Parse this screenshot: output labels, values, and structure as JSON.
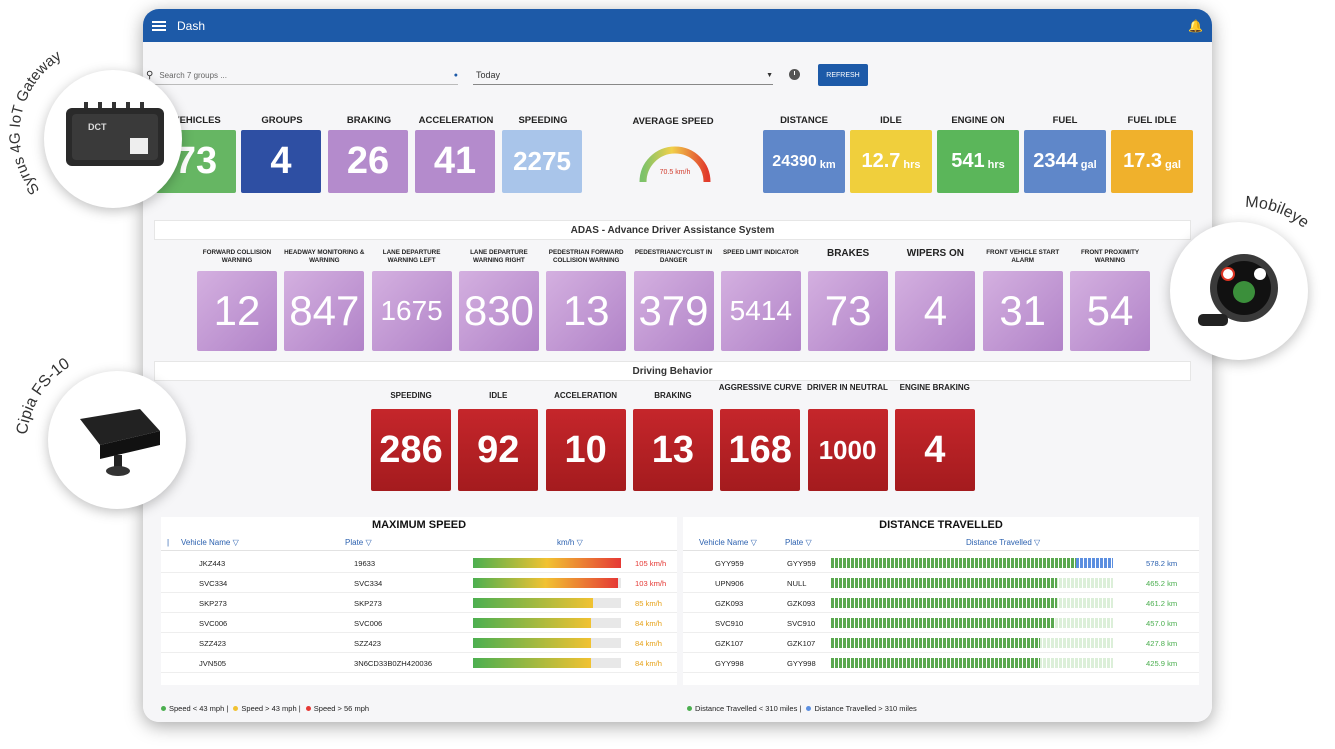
{
  "app": {
    "title": "Dash"
  },
  "toolbar": {
    "search_placeholder": "Search 7 groups ...",
    "date_value": "Today",
    "refresh_label": "REFRESH"
  },
  "kpis": [
    {
      "label": "VEHICLES",
      "value": "73",
      "color": "#66b663"
    },
    {
      "label": "GROUPS",
      "value": "4",
      "color": "#2e4fa3"
    },
    {
      "label": "BRAKING",
      "value": "26",
      "color": "#b48bcc"
    },
    {
      "label": "ACCELERATION",
      "value": "41",
      "color": "#b48bcc"
    },
    {
      "label": "SPEEDING",
      "value": "2275",
      "color": "#a9c5ea"
    }
  ],
  "average_speed": {
    "label": "AVERAGE SPEED",
    "value": "70.5 km/h"
  },
  "right_kpis": [
    {
      "label": "DISTANCE",
      "value": "24390",
      "unit": "km",
      "color": "#5f87c9"
    },
    {
      "label": "IDLE",
      "value": "12.7",
      "unit": "hrs",
      "color": "#f0cf3c"
    },
    {
      "label": "ENGINE ON",
      "value": "541",
      "unit": "hrs",
      "color": "#5bb65a"
    },
    {
      "label": "FUEL",
      "value": "2344",
      "unit": "gal",
      "color": "#5f87c9"
    },
    {
      "label": "FUEL IDLE",
      "value": "17.3",
      "unit": "gal",
      "color": "#f0b12c"
    }
  ],
  "adas": {
    "title": "ADAS - Advance Driver Assistance System",
    "tiles": [
      {
        "label": "FORWARD COLLISION WARNING",
        "value": "12"
      },
      {
        "label": "HEADWAY MONITORING & WARNING",
        "value": "847"
      },
      {
        "label": "LANE DEPARTURE WARNING LEFT",
        "value": "1675"
      },
      {
        "label": "LANE DEPARTURE WARNING RIGHT",
        "value": "830"
      },
      {
        "label": "PEDESTRIAN FORWARD COLLISION WARNING",
        "value": "13"
      },
      {
        "label": "PEDESTRIAN/CYCLIST IN DANGER",
        "value": "379"
      },
      {
        "label": "SPEED LIMIT INDICATOR",
        "value": "5414"
      },
      {
        "label": "BRAKES",
        "value": "73"
      },
      {
        "label": "WIPERS ON",
        "value": "4"
      },
      {
        "label": "FRONT VEHICLE START ALARM",
        "value": "31"
      },
      {
        "label": "FRONT PROXIMITY WARNING",
        "value": "54"
      }
    ]
  },
  "driving": {
    "title": "Driving Behavior",
    "tiles": [
      {
        "label": "SPEEDING",
        "value": "286"
      },
      {
        "label": "IDLE",
        "value": "92"
      },
      {
        "label": "ACCELERATION",
        "value": "10"
      },
      {
        "label": "BRAKING",
        "value": "13"
      },
      {
        "label": "AGGRESSIVE CURVE",
        "value": "168"
      },
      {
        "label": "DRIVER IN NEUTRAL",
        "value": "1000"
      },
      {
        "label": "ENGINE BRAKING",
        "value": "4"
      }
    ]
  },
  "max_speed": {
    "title": "MAXIMUM SPEED",
    "columns": [
      "Vehicle Name",
      "Plate",
      "km/h"
    ],
    "rows": [
      {
        "name": "JKZ443",
        "plate": "19633",
        "speed": "105 km/h",
        "ratio": 1.0
      },
      {
        "name": "SVC334",
        "plate": "SVC334",
        "speed": "103 km/h",
        "ratio": 0.98
      },
      {
        "name": "SKP273",
        "plate": "SKP273",
        "speed": "85 km/h",
        "ratio": 0.81
      },
      {
        "name": "SVC006",
        "plate": "SVC006",
        "speed": "84 km/h",
        "ratio": 0.8
      },
      {
        "name": "SZZ423",
        "plate": "SZZ423",
        "speed": "84 km/h",
        "ratio": 0.8
      },
      {
        "name": "JVN505",
        "plate": "3N6CD33B0ZH420036",
        "speed": "84 km/h",
        "ratio": 0.8
      }
    ],
    "legend": [
      "Speed < 43 mph |",
      "Speed > 43 mph |",
      "Speed > 56 mph"
    ]
  },
  "distance": {
    "title": "DISTANCE TRAVELLED",
    "columns": [
      "Vehicle Name",
      "Plate",
      "Distance Travelled"
    ],
    "rows": [
      {
        "name": "GYY959",
        "plate": "GYY959",
        "dist": "578.2 km",
        "ratio": 1.0,
        "over": true
      },
      {
        "name": "UPN906",
        "plate": "NULL",
        "dist": "465.2 km",
        "ratio": 0.8,
        "over": false
      },
      {
        "name": "GZK093",
        "plate": "GZK093",
        "dist": "461.2 km",
        "ratio": 0.8,
        "over": false
      },
      {
        "name": "SVC910",
        "plate": "SVC910",
        "dist": "457.0 km",
        "ratio": 0.79,
        "over": false
      },
      {
        "name": "GZK107",
        "plate": "GZK107",
        "dist": "427.8 km",
        "ratio": 0.74,
        "over": false
      },
      {
        "name": "GYY998",
        "plate": "GYY998",
        "dist": "425.9 km",
        "ratio": 0.74,
        "over": false
      }
    ],
    "legend": [
      "Distance Travelled < 310 miles |",
      "Distance Travelled > 310 miles"
    ]
  },
  "badges": {
    "gateway": "Syrus 4G IoT Gateway",
    "mobileye": "Mobileye",
    "cipia": "Cipia FS-10",
    "device_text": "DCT"
  }
}
